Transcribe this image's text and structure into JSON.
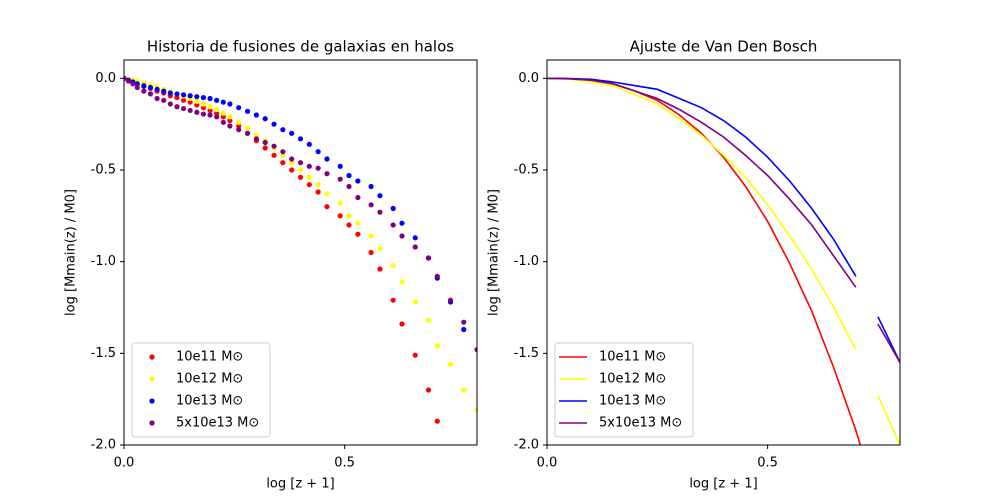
{
  "chart_data": [
    {
      "type": "scatter",
      "title": "Historia de fusiones de galaxias en halos",
      "xlabel": "log [z + 1]",
      "ylabel": "log [Mmain(z) / M0]",
      "xlim": [
        0,
        0.8
      ],
      "ylim": [
        -2.0,
        0.1
      ],
      "xticks": [
        {
          "value": 0,
          "label": "0.0"
        },
        0.5
      ],
      "yticks": [
        {
          "value": 0,
          "label": "0.0"
        },
        -0.5,
        {
          "value": -1,
          "label": "-1.0"
        },
        -1.5,
        {
          "value": -2,
          "label": "-2.0"
        }
      ],
      "legend": "lower left",
      "x": [
        0,
        0.01,
        0.02,
        0.03,
        0.045,
        0.06,
        0.075,
        0.09,
        0.105,
        0.12,
        0.135,
        0.15,
        0.165,
        0.18,
        0.195,
        0.21,
        0.225,
        0.24,
        0.26,
        0.28,
        0.3,
        0.32,
        0.34,
        0.36,
        0.38,
        0.4,
        0.42,
        0.44,
        0.46,
        0.49,
        0.51,
        0.53,
        0.56,
        0.58,
        0.61,
        0.63,
        0.66,
        0.69,
        0.71,
        0.74,
        0.77,
        0.8
      ],
      "series": [
        {
          "name": "10e11 M⊙",
          "color": "#ff0000",
          "values": [
            0,
            -0.01,
            -0.02,
            -0.03,
            -0.045,
            -0.055,
            -0.07,
            -0.08,
            -0.095,
            -0.105,
            -0.12,
            -0.13,
            -0.145,
            -0.16,
            -0.175,
            -0.19,
            -0.21,
            -0.23,
            -0.26,
            -0.3,
            -0.34,
            -0.38,
            -0.42,
            -0.46,
            -0.5,
            -0.54,
            -0.58,
            -0.62,
            -0.7,
            -0.75,
            -0.8,
            -0.85,
            -0.95,
            -1.04,
            -1.21,
            -1.34,
            -1.51,
            -1.7,
            -1.87,
            null,
            null,
            null
          ]
        },
        {
          "name": "10e12 M⊙",
          "color": "#ffff00",
          "values": [
            0,
            -0.005,
            -0.01,
            -0.015,
            -0.025,
            -0.035,
            -0.045,
            -0.06,
            -0.07,
            -0.085,
            -0.095,
            -0.11,
            -0.125,
            -0.14,
            -0.155,
            -0.17,
            -0.19,
            -0.21,
            -0.24,
            -0.27,
            -0.31,
            -0.34,
            -0.38,
            -0.42,
            -0.46,
            -0.5,
            -0.54,
            -0.58,
            -0.63,
            -0.68,
            -0.75,
            -0.79,
            -0.86,
            -0.93,
            -1.02,
            -1.11,
            -1.22,
            -1.32,
            -1.46,
            -1.56,
            -1.7,
            -1.81
          ]
        },
        {
          "name": "10e13 M⊙",
          "color": "#0000ff",
          "values": [
            0,
            -0.01,
            -0.02,
            -0.03,
            -0.04,
            -0.05,
            -0.06,
            -0.07,
            -0.08,
            -0.085,
            -0.09,
            -0.095,
            -0.1,
            -0.105,
            -0.11,
            -0.12,
            -0.13,
            -0.14,
            -0.16,
            -0.18,
            -0.2,
            -0.22,
            -0.25,
            -0.28,
            -0.3,
            -0.33,
            -0.36,
            -0.4,
            -0.44,
            -0.48,
            -0.53,
            -0.56,
            -0.59,
            -0.64,
            -0.71,
            -0.79,
            -0.87,
            -0.98,
            -1.09,
            -1.22,
            -1.37,
            null
          ]
        },
        {
          "name": "5x10e13 M⊙",
          "color": "#800080",
          "values": [
            0,
            -0.015,
            -0.03,
            -0.05,
            -0.07,
            -0.085,
            -0.11,
            -0.12,
            -0.14,
            -0.155,
            -0.165,
            -0.175,
            -0.185,
            -0.195,
            -0.2,
            -0.21,
            -0.24,
            -0.26,
            -0.28,
            -0.3,
            -0.33,
            -0.35,
            -0.37,
            -0.4,
            -0.44,
            -0.46,
            -0.48,
            -0.49,
            -0.52,
            -0.55,
            -0.59,
            -0.65,
            -0.69,
            -0.73,
            -0.8,
            -0.86,
            -0.92,
            -0.98,
            -1.08,
            -1.21,
            -1.33,
            -1.48
          ]
        }
      ]
    },
    {
      "type": "line",
      "title": "Ajuste de Van Den Bosch",
      "xlabel": "log [z + 1]",
      "ylabel": "log [Mmain(z) / M0]",
      "xlim": [
        0,
        0.8
      ],
      "ylim": [
        -2.0,
        0.1
      ],
      "xticks": [
        {
          "value": 0,
          "label": "0.0"
        },
        0.5
      ],
      "yticks": [
        {
          "value": 0,
          "label": "0.0"
        },
        -0.5,
        {
          "value": -1,
          "label": "-1.0"
        },
        -1.5,
        {
          "value": -2,
          "label": "-2.0"
        }
      ],
      "legend": "lower left",
      "x": [
        0,
        0.05,
        0.1,
        0.15,
        0.2,
        0.25,
        0.3,
        0.35,
        0.4,
        0.45,
        0.5,
        0.55,
        0.6,
        0.65,
        0.7,
        0.71,
        0.75,
        0.8
      ],
      "series": [
        {
          "name": "10e11 M⊙",
          "color": "#ff0000",
          "values": [
            0,
            -0.002,
            -0.01,
            -0.03,
            -0.07,
            -0.12,
            -0.2,
            -0.3,
            -0.43,
            -0.59,
            -0.78,
            -1.01,
            -1.27,
            -1.58,
            -1.92,
            -2.0,
            null,
            null
          ]
        },
        {
          "name": "10e12 M⊙",
          "color": "#ffff00",
          "values": [
            0,
            -0.004,
            -0.02,
            -0.04,
            -0.09,
            -0.14,
            -0.22,
            -0.31,
            -0.42,
            -0.54,
            -0.69,
            -0.86,
            -1.04,
            -1.25,
            -1.48,
            null,
            -1.73,
            -2.0
          ]
        },
        {
          "name": "10e13 M⊙",
          "color": "#0000ff",
          "values": [
            0,
            -0.001,
            -0.005,
            -0.02,
            -0.04,
            -0.06,
            -0.11,
            -0.16,
            -0.23,
            -0.32,
            -0.43,
            -0.56,
            -0.71,
            -0.88,
            -1.08,
            null,
            -1.3,
            -1.55
          ]
        },
        {
          "name": "5x10e13 M⊙",
          "color": "#800080",
          "values": [
            0,
            -0.003,
            -0.01,
            -0.03,
            -0.07,
            -0.11,
            -0.17,
            -0.24,
            -0.32,
            -0.42,
            -0.53,
            -0.66,
            -0.8,
            -0.97,
            -1.14,
            null,
            -1.34,
            -1.55
          ]
        }
      ]
    }
  ]
}
